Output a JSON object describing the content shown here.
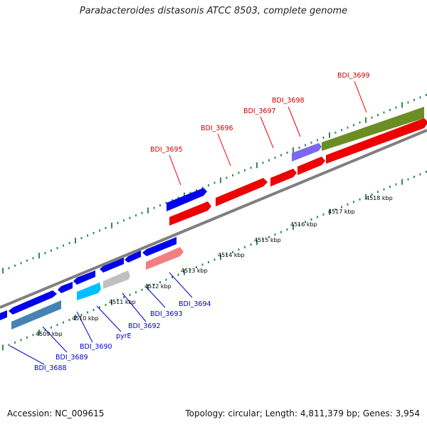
{
  "title": "Parabacteroides distasonis ATCC 8503, complete genome",
  "footer": {
    "accession": "Accession: NC_009615",
    "topology": "Topology: circular; Length: 4,811,379 bp; Genes: 3,954"
  },
  "colors": {
    "forward_strand": "#ee0000",
    "reverse_strand": "#0000ee",
    "olive_gene": "#6b8e23",
    "purple_gene": "#7b68ee",
    "cyan_gene": "#00bfff",
    "steel_gene": "#4682b4",
    "gray_gene": "#c0c0c0",
    "pink_gene": "#f08080",
    "backbone": "#888888",
    "tick": "#2e8b57"
  },
  "scale_labels": [
    "4509 kbp",
    "4510 kbp",
    "4511 kbp",
    "4512 kbp",
    "4513 kbp",
    "4514 kbp",
    "4515 kbp",
    "4516 kbp",
    "4517 kbp",
    "4518 kbp"
  ],
  "forward_labels": [
    "BDI_3695",
    "BDI_3696",
    "BDI_3697",
    "BDI_3698",
    "BDI_3699"
  ],
  "reverse_labels": [
    "BDI_3688",
    "BDI_3689",
    "BDI_3690",
    "pyrE",
    "BDI_3692",
    "BDI_3693",
    "BDI_3694"
  ]
}
